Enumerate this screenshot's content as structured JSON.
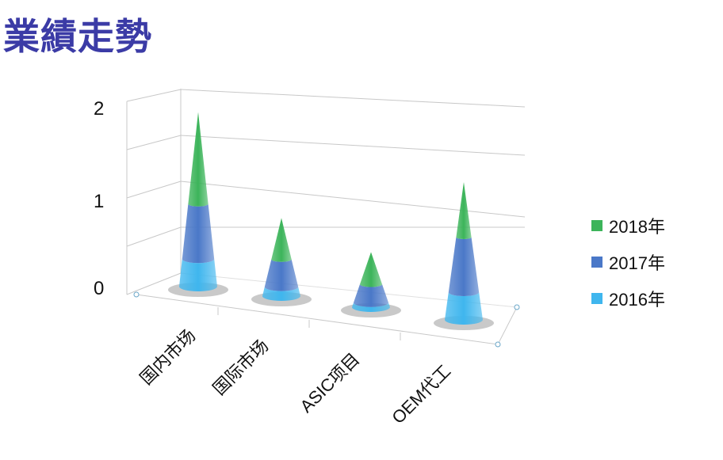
{
  "title": "業績走勢",
  "chart_data": {
    "type": "bar",
    "subtype": "3d-stacked-cone",
    "categories": [
      "国内市场",
      "国际市场",
      "ASIC项目",
      "OEM代工"
    ],
    "series": [
      {
        "name": "2016年",
        "values": [
          0.3,
          0.1,
          0.05,
          0.3
        ],
        "color": "#3fb6ee"
      },
      {
        "name": "2017年",
        "values": [
          0.6,
          0.3,
          0.2,
          0.6
        ],
        "color": "#4a78c8"
      },
      {
        "name": "2018年",
        "values": [
          1.0,
          0.45,
          0.35,
          0.6
        ],
        "color": "#3cb45a"
      }
    ],
    "ylim": [
      0,
      2
    ],
    "yticks": [
      "0",
      "1",
      "2"
    ],
    "grid": true,
    "legend": "right"
  }
}
